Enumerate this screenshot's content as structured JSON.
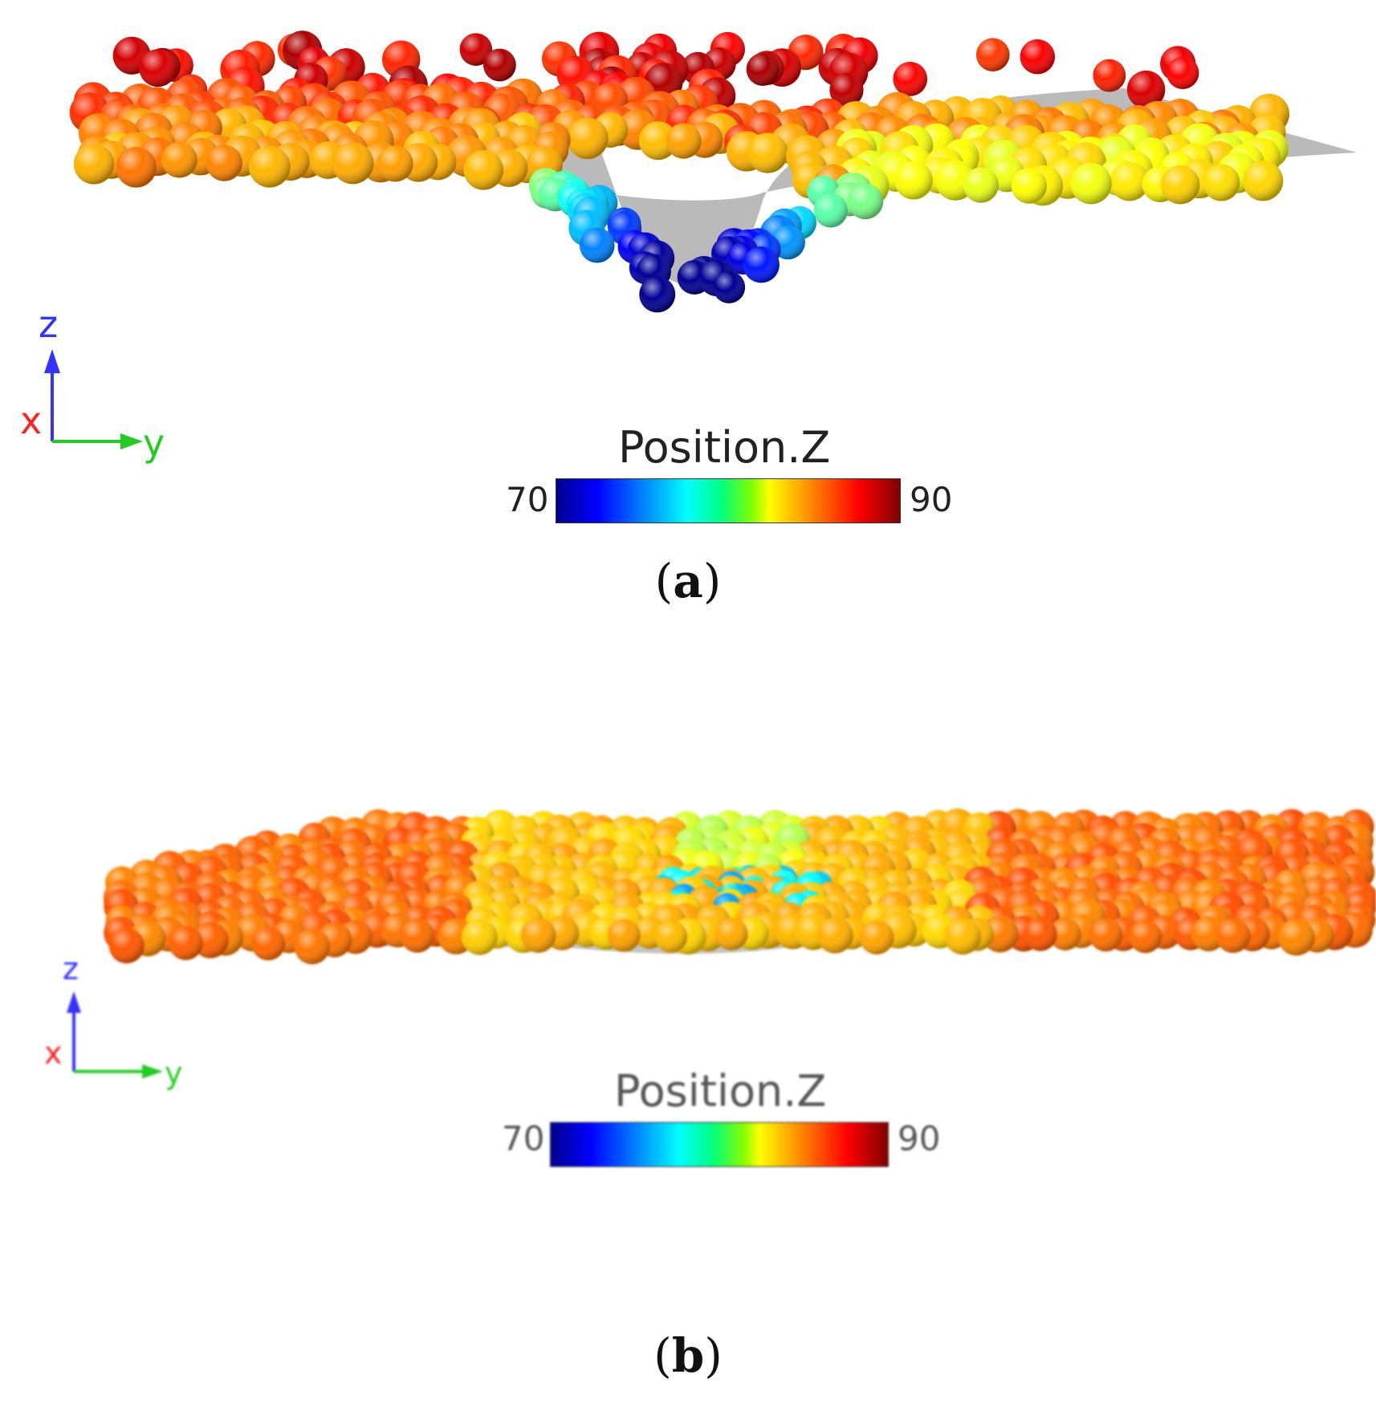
{
  "panels": [
    {
      "label": "a",
      "colorbar": {
        "title": "Position.Z",
        "min": "70",
        "max": "90"
      },
      "axes": {
        "z": "z",
        "x": "x",
        "y": "y"
      }
    },
    {
      "label": "b",
      "colorbar": {
        "title": "Position.Z",
        "min": "70",
        "max": "90"
      },
      "axes": {
        "z": "z",
        "x": "x",
        "y": "y"
      }
    }
  ],
  "colors": {
    "axis_z": "#3333ff",
    "axis_x": "#ff2222",
    "axis_y": "#22cc22",
    "surface": "#b0b0b0"
  }
}
